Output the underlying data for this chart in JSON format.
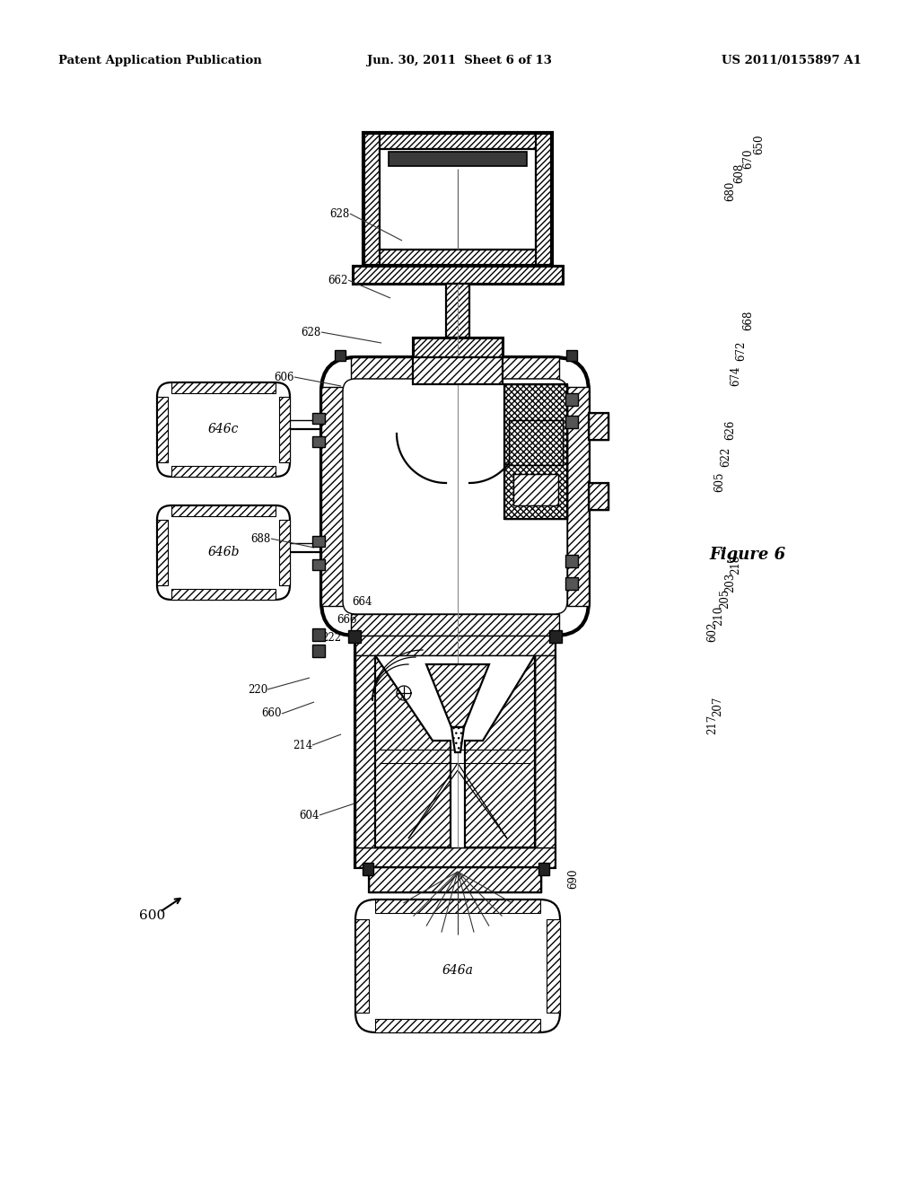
{
  "bg_color": "#ffffff",
  "header_left": "Patent Application Publication",
  "header_center": "Jun. 30, 2011  Sheet 6 of 13",
  "header_right": "US 2011/0155897 A1",
  "figure_label": "Figure 6",
  "ref_label": "600"
}
